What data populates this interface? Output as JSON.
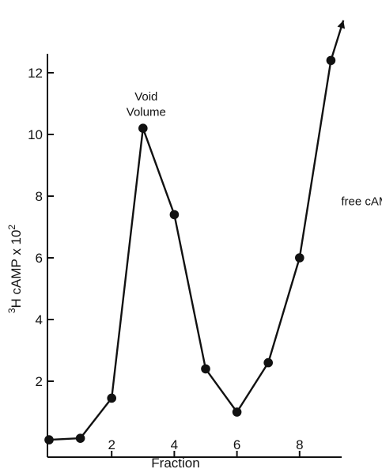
{
  "chart_data": {
    "type": "line",
    "xlabel": "Fraction",
    "ylabel": "3H cAMP x 10",
    "ylabel_parts": {
      "sup_left": "3",
      "main": "H cAMP x 10",
      "sup_right": "2"
    },
    "xlim": [
      0,
      9.5
    ],
    "ylim": [
      0,
      12.7
    ],
    "xticks": [
      2,
      4,
      6,
      8
    ],
    "yticks": [
      2,
      4,
      6,
      8,
      10,
      12
    ],
    "grid": false,
    "series": [
      {
        "x": [
          0,
          1,
          2,
          3,
          4,
          5,
          6,
          7,
          8,
          9
        ],
        "y": [
          0.1,
          0.15,
          1.45,
          10.2,
          7.4,
          2.4,
          1.0,
          2.6,
          6.0,
          12.4
        ],
        "continues_beyond": [
          9.4,
          13.7
        ]
      }
    ],
    "annotations": [
      {
        "text": "Void",
        "x": 3,
        "y": 11.1
      },
      {
        "text": "Volume",
        "x": 3,
        "y": 10.6
      },
      {
        "text": "free cAMP",
        "x": 9.2,
        "y": 7.7
      }
    ]
  }
}
